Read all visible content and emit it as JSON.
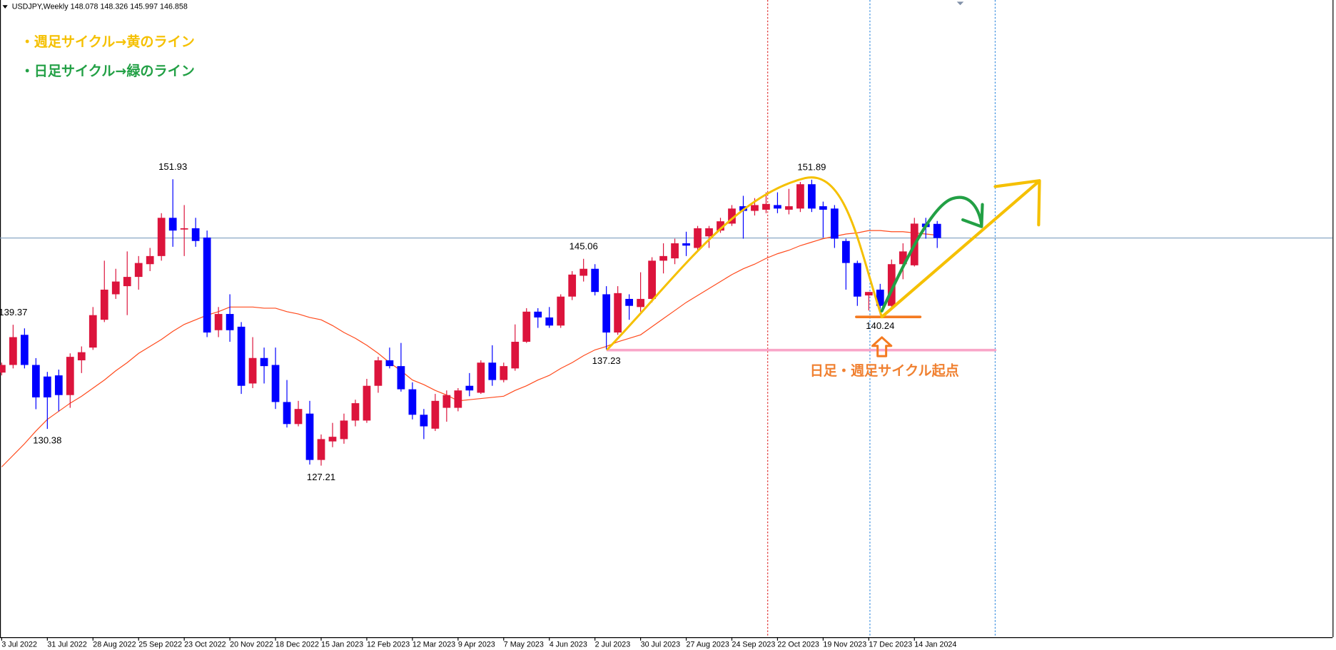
{
  "chart_data": {
    "type": "candlestick",
    "title": "USDJPY,Weekly",
    "categories": [
      "3 Jul 2022",
      null,
      null,
      null,
      "31 Jul 2022",
      null,
      null,
      null,
      "28 Aug 2022",
      null,
      null,
      null,
      "25 Sep 2022",
      null,
      null,
      null,
      "23 Oct 2022",
      null,
      null,
      null,
      "20 Nov 2022",
      null,
      null,
      null,
      "18 Dec 2022",
      null,
      null,
      null,
      "15 Jan 2023",
      null,
      null,
      null,
      "12 Feb 2023",
      null,
      null,
      null,
      "12 Mar 2023",
      null,
      null,
      null,
      "9 Apr 2023",
      null,
      null,
      null,
      "7 May 2023",
      null,
      null,
      null,
      "4 Jun 2023",
      null,
      null,
      null,
      "2 Jul 2023",
      null,
      null,
      null,
      "30 Jul 2023",
      null,
      null,
      null,
      "27 Aug 2023",
      null,
      null,
      null,
      "24 Sep 2023",
      null,
      null,
      null,
      "22 Oct 2023",
      null,
      null,
      null,
      "19 Nov 2023",
      null,
      null,
      null,
      "17 Dec 2023",
      null,
      null,
      null,
      "14 Jan 2024",
      null,
      null
    ],
    "open": [
      135.24,
      135.9,
      138.5,
      135.9,
      134.9,
      135.0,
      133.3,
      136.3,
      137.4,
      139.8,
      142.0,
      142.7,
      143.5,
      144.6,
      145.3,
      148.6,
      147.6,
      147.7,
      146.9,
      138.9,
      140.3,
      139.2,
      134.3,
      136.5,
      135.9,
      132.7,
      130.8,
      131.7,
      127.7,
      129.3,
      129.5,
      131.1,
      131.1,
      134.1,
      136.3,
      135.8,
      133.8,
      131.6,
      130.4,
      132.2,
      132.2,
      134.1,
      133.5,
      136.1,
      134.6,
      135.6,
      137.9,
      140.5,
      140.0,
      139.3,
      141.8,
      143.6,
      144.2,
      142.0,
      138.7,
      141.6,
      140.9,
      141.6,
      144.9,
      145.1,
      146.4,
      146.0,
      147.0,
      147.5,
      148.1,
      149.6,
      149.2,
      149.3,
      149.7,
      149.3,
      149.4,
      151.5,
      149.6,
      149.4,
      146.6,
      144.7,
      141.9,
      142.4,
      141.0,
      144.6,
      144.5,
      148.1,
      148.078
    ],
    "high": [
      136.1,
      139.37,
      139.06,
      136.49,
      135.3,
      135.5,
      136.9,
      137.5,
      140.9,
      144.9,
      144.2,
      145.7,
      145.3,
      146.0,
      149.0,
      151.93,
      149.7,
      148.6,
      147.5,
      140.9,
      142.0,
      139.6,
      138.3,
      137.4,
      137.4,
      134.6,
      132.8,
      132.8,
      129.9,
      130.9,
      131.7,
      132.9,
      134.7,
      136.6,
      137.4,
      137.8,
      134.4,
      132.1,
      133.4,
      133.7,
      133.9,
      135.2,
      136.3,
      137.6,
      136.1,
      139.4,
      140.8,
      140.8,
      140.9,
      142.0,
      144.0,
      145.06,
      144.6,
      142.7,
      142.7,
      142.0,
      143.9,
      145.2,
      146.4,
      146.8,
      147.4,
      147.9,
      147.9,
      148.6,
      149.7,
      150.5,
      150.3,
      150.8,
      150.8,
      151.1,
      151.7,
      151.89,
      150.0,
      149.7,
      146.8,
      144.9,
      142.2,
      142.9,
      145.0,
      146.4,
      148.6,
      148.6,
      148.326
    ],
    "low": [
      135.0,
      135.6,
      135.6,
      132.08,
      130.38,
      131.9,
      132.2,
      135.2,
      137.2,
      139.6,
      141.6,
      140.2,
      142.4,
      144.0,
      144.9,
      146.1,
      145.3,
      146.1,
      138.3,
      138.3,
      137.9,
      133.4,
      133.9,
      134.3,
      132.1,
      130.5,
      130.6,
      127.3,
      127.21,
      128.8,
      129.1,
      130.6,
      130.9,
      133.5,
      135.6,
      133.6,
      131.2,
      129.5,
      130.2,
      131.0,
      131.9,
      133.2,
      133.4,
      134.1,
      134.4,
      135.4,
      137.8,
      139.1,
      139.1,
      139.1,
      141.5,
      143.1,
      141.9,
      137.23,
      138.5,
      139.8,
      140.5,
      141.3,
      143.8,
      144.6,
      145.3,
      145.8,
      146.0,
      147.3,
      147.9,
      146.8,
      148.8,
      149.0,
      149.0,
      148.9,
      149.1,
      149.1,
      146.9,
      146.0,
      142.4,
      141.0,
      140.6,
      140.24,
      140.8,
      143.3,
      144.4,
      146.8,
      145.997
    ],
    "close": [
      135.9,
      138.3,
      135.9,
      133.1,
      133.1,
      133.3,
      136.6,
      137.0,
      140.2,
      142.4,
      143.1,
      143.5,
      144.7,
      145.3,
      148.6,
      147.5,
      147.7,
      146.6,
      138.7,
      140.3,
      138.9,
      134.1,
      136.5,
      135.8,
      132.7,
      130.8,
      132.1,
      127.7,
      129.5,
      129.7,
      131.1,
      132.6,
      134.1,
      136.3,
      135.8,
      133.8,
      131.6,
      130.6,
      132.8,
      133.3,
      133.7,
      133.7,
      136.1,
      134.6,
      135.8,
      137.9,
      140.5,
      140.0,
      139.3,
      141.8,
      143.7,
      144.2,
      142.2,
      138.7,
      142.1,
      141.0,
      141.6,
      144.9,
      145.3,
      146.4,
      146.2,
      147.7,
      147.7,
      148.3,
      149.4,
      149.2,
      149.7,
      149.8,
      149.4,
      149.6,
      151.5,
      149.4,
      149.3,
      146.8,
      144.7,
      141.8,
      142.2,
      141.0,
      144.6,
      145.7,
      148.1,
      147.8,
      146.858
    ],
    "up_color": "#dc143c",
    "down_color": "#0000ff",
    "moving_average": {
      "color": "#ff4a1c",
      "values": [
        127.1,
        128.1,
        129.1,
        130.2,
        131.2,
        131.9,
        132.6,
        133.2,
        133.9,
        134.6,
        135.4,
        136.1,
        136.9,
        137.5,
        138.1,
        138.8,
        139.4,
        139.8,
        140.2,
        140.5,
        140.9,
        140.9,
        140.9,
        140.8,
        140.8,
        140.5,
        140.3,
        140.0,
        139.8,
        139.3,
        138.7,
        138.2,
        137.6,
        136.9,
        136.1,
        135.4,
        134.6,
        134.2,
        133.7,
        133.3,
        132.8,
        132.9,
        133.0,
        133.1,
        133.2,
        133.7,
        134.1,
        134.6,
        135.0,
        135.6,
        136.1,
        136.7,
        137.2,
        137.5,
        137.9,
        138.2,
        138.5,
        139.2,
        139.9,
        140.6,
        141.3,
        141.9,
        142.5,
        143.1,
        143.7,
        144.2,
        144.6,
        145.1,
        145.5,
        145.8,
        146.2,
        146.5,
        146.8,
        147.0,
        147.2,
        147.3,
        147.5,
        147.5,
        147.4,
        147.4,
        147.3,
        147.2,
        147.1
      ]
    },
    "price_labels": [
      151.93,
      145.06,
      139.37,
      130.38,
      127.21,
      137.23,
      151.89,
      140.24
    ],
    "ylim": [
      112.4,
      167.4
    ],
    "annotations": {
      "weekly_cycle": "・週足サイクル→黄のライン",
      "daily_cycle": "・日足サイクル→緑のライン",
      "cycle_origin": "日足・週足サイクル起点"
    }
  }
}
